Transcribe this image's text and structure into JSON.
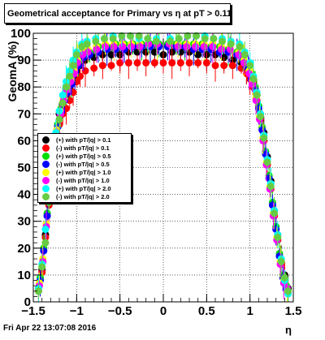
{
  "chart_data": {
    "type": "scatter",
    "title": "Geometrical acceptance for Primary vs   η at pT > 0.11",
    "xlabel": "η",
    "ylabel": "GeomA (%)",
    "xlim": [
      -1.5,
      1.5
    ],
    "ylim": [
      0,
      100
    ],
    "x_ticks": [
      "−1.5",
      "−1",
      "−0.5",
      "0",
      "0.5",
      "1",
      "1.5"
    ],
    "y_ticks": [
      "0",
      "10",
      "20",
      "30",
      "40",
      "50",
      "60",
      "70",
      "80",
      "90",
      "100"
    ],
    "grid": true,
    "legend_position": "left",
    "series": [
      {
        "name": "(+) with pT/|q| > 0.1",
        "color": "#000000",
        "x": [
          -1.44,
          -1.4,
          -1.36,
          -1.32,
          -1.28,
          -1.24,
          -1.2,
          -1.16,
          -1.12,
          -1.08,
          -1.04,
          -1.0,
          -0.96,
          -0.9,
          -0.8,
          -0.7,
          -0.6,
          -0.5,
          -0.4,
          -0.3,
          -0.2,
          -0.1,
          0.0,
          0.1,
          0.2,
          0.3,
          0.4,
          0.5,
          0.6,
          0.7,
          0.8,
          0.9,
          0.96,
          1.0,
          1.04,
          1.08,
          1.12,
          1.16,
          1.2,
          1.24,
          1.28,
          1.32,
          1.36,
          1.4,
          1.44
        ],
        "y": [
          5,
          12,
          25,
          38,
          52,
          62,
          70,
          74,
          76,
          79,
          83,
          86,
          88,
          90,
          91,
          92,
          92,
          92,
          93,
          93,
          93,
          93,
          92,
          93,
          93,
          93,
          92,
          92,
          92,
          91,
          90,
          89,
          87,
          85,
          82,
          77,
          70,
          63,
          54,
          45,
          34,
          25,
          15,
          10,
          5
        ]
      },
      {
        "name": "(-) with pT/|q| > 0.1",
        "color": "#ff0000",
        "x": [
          -1.44,
          -1.4,
          -1.36,
          -1.32,
          -1.28,
          -1.24,
          -1.2,
          -1.16,
          -1.12,
          -1.08,
          -1.04,
          -1.0,
          -0.96,
          -0.9,
          -0.8,
          -0.7,
          -0.6,
          -0.5,
          -0.4,
          -0.3,
          -0.2,
          -0.1,
          0.0,
          0.1,
          0.2,
          0.3,
          0.4,
          0.5,
          0.6,
          0.7,
          0.8,
          0.9,
          0.96,
          1.0,
          1.04,
          1.08,
          1.12,
          1.16,
          1.2,
          1.24,
          1.28,
          1.32,
          1.36,
          1.4,
          1.44
        ],
        "y": [
          4,
          11,
          24,
          36,
          48,
          58,
          66,
          70,
          72,
          75,
          78,
          82,
          84,
          86,
          87,
          88,
          88,
          89,
          89,
          89,
          89,
          89,
          89,
          89,
          89,
          89,
          89,
          89,
          88,
          88,
          88,
          87,
          85,
          83,
          80,
          75,
          68,
          60,
          51,
          42,
          32,
          23,
          14,
          9,
          4
        ]
      },
      {
        "name": "(+) with pT/|q| > 0.5",
        "color": "#00dd00",
        "x": [
          -1.42,
          -1.38,
          -1.34,
          -1.3,
          -1.26,
          -1.22,
          -1.18,
          -1.14,
          -1.1,
          -1.06,
          -1.02,
          -0.98,
          -0.92,
          -0.85,
          -0.75,
          -0.65,
          -0.55,
          -0.45,
          -0.35,
          -0.25,
          -0.15,
          -0.05,
          0.05,
          0.15,
          0.25,
          0.35,
          0.45,
          0.55,
          0.65,
          0.75,
          0.85,
          0.92,
          0.98,
          1.02,
          1.06,
          1.1,
          1.14,
          1.18,
          1.22,
          1.26,
          1.3,
          1.34,
          1.38,
          1.42
        ],
        "y": [
          9,
          20,
          33,
          46,
          57,
          66,
          72,
          76,
          79,
          82,
          86,
          89,
          92,
          93,
          95,
          95,
          96,
          96,
          96,
          96,
          96,
          96,
          96,
          96,
          96,
          96,
          96,
          95,
          95,
          94,
          93,
          91,
          88,
          85,
          80,
          73,
          65,
          56,
          47,
          37,
          28,
          18,
          10,
          6
        ]
      },
      {
        "name": "(-) with pT/|q| > 0.5",
        "color": "#0000ff",
        "x": [
          -1.42,
          -1.38,
          -1.34,
          -1.3,
          -1.26,
          -1.22,
          -1.18,
          -1.14,
          -1.1,
          -1.06,
          -1.02,
          -0.98,
          -0.92,
          -0.85,
          -0.75,
          -0.65,
          -0.55,
          -0.45,
          -0.35,
          -0.25,
          -0.15,
          -0.05,
          0.05,
          0.15,
          0.25,
          0.35,
          0.45,
          0.55,
          0.65,
          0.75,
          0.85,
          0.92,
          0.98,
          1.02,
          1.06,
          1.1,
          1.14,
          1.18,
          1.22,
          1.26,
          1.3,
          1.34,
          1.38,
          1.42
        ],
        "y": [
          8,
          19,
          32,
          45,
          56,
          65,
          71,
          75,
          78,
          81,
          85,
          88,
          91,
          92,
          93,
          94,
          94,
          94,
          95,
          95,
          95,
          95,
          95,
          95,
          95,
          94,
          94,
          94,
          93,
          93,
          92,
          90,
          87,
          84,
          79,
          72,
          64,
          55,
          46,
          36,
          27,
          17,
          9,
          5
        ]
      },
      {
        "name": "(+) with pT/|q| > 1.0",
        "color": "#ffff00",
        "x": [
          -1.43,
          -1.39,
          -1.35,
          -1.31,
          -1.27,
          -1.23,
          -1.19,
          -1.15,
          -1.11,
          -1.07,
          -1.03,
          -0.99,
          -0.93,
          -0.87,
          -0.77,
          -0.67,
          -0.57,
          -0.47,
          -0.37,
          -0.27,
          -0.17,
          -0.07,
          0.07,
          0.17,
          0.27,
          0.37,
          0.47,
          0.57,
          0.67,
          0.77,
          0.87,
          0.93,
          0.99,
          1.03,
          1.07,
          1.11,
          1.15,
          1.19,
          1.23,
          1.27,
          1.31,
          1.35,
          1.39,
          1.43
        ],
        "y": [
          7,
          16,
          29,
          43,
          55,
          64,
          71,
          76,
          80,
          83,
          86,
          90,
          93,
          94,
          95,
          96,
          96,
          96,
          96,
          96,
          96,
          96,
          96,
          96,
          96,
          96,
          96,
          96,
          95,
          95,
          93,
          90,
          86,
          82,
          76,
          69,
          61,
          52,
          43,
          33,
          24,
          15,
          8,
          4
        ]
      },
      {
        "name": "(-) with pT/|q| > 1.0",
        "color": "#ff00ff",
        "x": [
          -1.43,
          -1.39,
          -1.35,
          -1.31,
          -1.27,
          -1.23,
          -1.19,
          -1.15,
          -1.11,
          -1.07,
          -1.03,
          -0.99,
          -0.93,
          -0.87,
          -0.77,
          -0.67,
          -0.57,
          -0.47,
          -0.37,
          -0.27,
          -0.17,
          -0.07,
          0.07,
          0.17,
          0.27,
          0.37,
          0.47,
          0.57,
          0.67,
          0.77,
          0.87,
          0.93,
          0.99,
          1.03,
          1.07,
          1.11,
          1.15,
          1.19,
          1.23,
          1.27,
          1.31,
          1.35,
          1.39,
          1.43
        ],
        "y": [
          6,
          15,
          28,
          42,
          54,
          63,
          70,
          75,
          79,
          82,
          85,
          89,
          92,
          93,
          94,
          95,
          95,
          95,
          95,
          95,
          96,
          96,
          96,
          95,
          95,
          95,
          95,
          95,
          94,
          94,
          92,
          89,
          85,
          81,
          75,
          68,
          60,
          51,
          42,
          32,
          23,
          14,
          7,
          5
        ]
      },
      {
        "name": "(+) with pT/|q| > 2.0",
        "color": "#00ffff",
        "x": [
          -1.44,
          -1.4,
          -1.36,
          -1.32,
          -1.28,
          -1.24,
          -1.2,
          -1.16,
          -1.12,
          -1.08,
          -1.04,
          -1.0,
          -0.94,
          -0.88,
          -0.78,
          -0.68,
          -0.58,
          -0.48,
          -0.38,
          -0.28,
          -0.18,
          -0.08,
          0.08,
          0.18,
          0.28,
          0.38,
          0.48,
          0.58,
          0.68,
          0.78,
          0.88,
          0.94,
          1.0,
          1.04,
          1.08,
          1.12,
          1.16,
          1.2,
          1.24,
          1.28,
          1.32,
          1.36,
          1.4,
          1.44
        ],
        "y": [
          5,
          14,
          27,
          40,
          53,
          63,
          71,
          77,
          82,
          86,
          90,
          93,
          96,
          97,
          98,
          98,
          99,
          99,
          99,
          98,
          98,
          98,
          98,
          98,
          99,
          99,
          99,
          98,
          98,
          97,
          96,
          93,
          89,
          84,
          78,
          70,
          62,
          53,
          44,
          34,
          25,
          16,
          8,
          3
        ]
      },
      {
        "name": "(-) with pT/|q| > 2.0",
        "color": "#66cc44",
        "x": [
          -1.44,
          -1.4,
          -1.36,
          -1.32,
          -1.28,
          -1.24,
          -1.2,
          -1.16,
          -1.12,
          -1.08,
          -1.04,
          -1.0,
          -0.94,
          -0.88,
          -0.78,
          -0.68,
          -0.58,
          -0.48,
          -0.38,
          -0.28,
          -0.18,
          -0.08,
          0.08,
          0.18,
          0.28,
          0.38,
          0.48,
          0.58,
          0.68,
          0.78,
          0.88,
          0.94,
          1.0,
          1.04,
          1.08,
          1.12,
          1.16,
          1.2,
          1.24,
          1.28,
          1.32,
          1.36,
          1.4,
          1.44
        ],
        "y": [
          4,
          13,
          22,
          37,
          50,
          60,
          68,
          74,
          80,
          84,
          88,
          92,
          95,
          96,
          97,
          98,
          98,
          99,
          99,
          99,
          98,
          97,
          97,
          98,
          99,
          99,
          98,
          98,
          97,
          96,
          95,
          92,
          88,
          83,
          77,
          69,
          61,
          52,
          43,
          33,
          24,
          15,
          9,
          4
        ]
      }
    ]
  },
  "footer_text": "Fri Apr 22 13:07:08 2016"
}
